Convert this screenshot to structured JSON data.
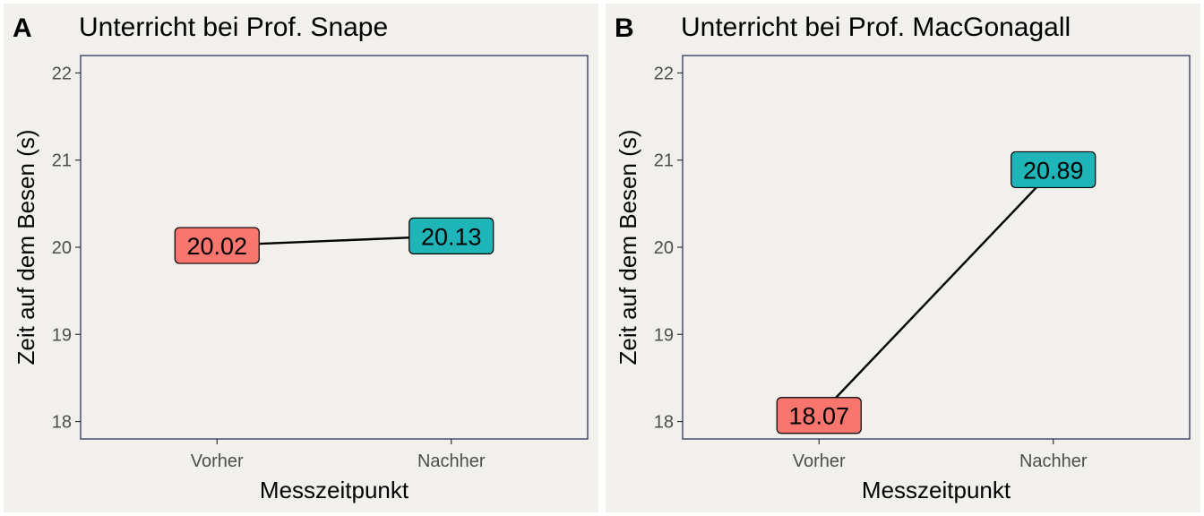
{
  "colors": {
    "panel_bg": "#f2f0ec",
    "frame": "#2b3366",
    "vorher": "#f8766d",
    "nachher": "#1fb5b8",
    "line": "#000000",
    "axis_text": "#4d4d4d"
  },
  "chart_data": [
    {
      "type": "line",
      "panel_letter": "A",
      "title": "Unterricht bei Prof. Snape",
      "xlabel": "Messzeitpunkt",
      "ylabel": "Zeit auf dem Besen (s)",
      "categories": [
        "Vorher",
        "Nachher"
      ],
      "values": [
        20.02,
        20.13
      ],
      "labels": [
        "20.02",
        "20.13"
      ],
      "ylim": [
        17.8,
        22.2
      ],
      "yticks": [
        18,
        19,
        20,
        21,
        22
      ],
      "grid": false
    },
    {
      "type": "line",
      "panel_letter": "B",
      "title": "Unterricht bei Prof. MacGonagall",
      "xlabel": "Messzeitpunkt",
      "ylabel": "Zeit auf dem Besen (s)",
      "categories": [
        "Vorher",
        "Nachher"
      ],
      "values": [
        18.07,
        20.89
      ],
      "labels": [
        "18.07",
        "20.89"
      ],
      "ylim": [
        17.8,
        22.2
      ],
      "yticks": [
        18,
        19,
        20,
        21,
        22
      ],
      "grid": false
    }
  ]
}
